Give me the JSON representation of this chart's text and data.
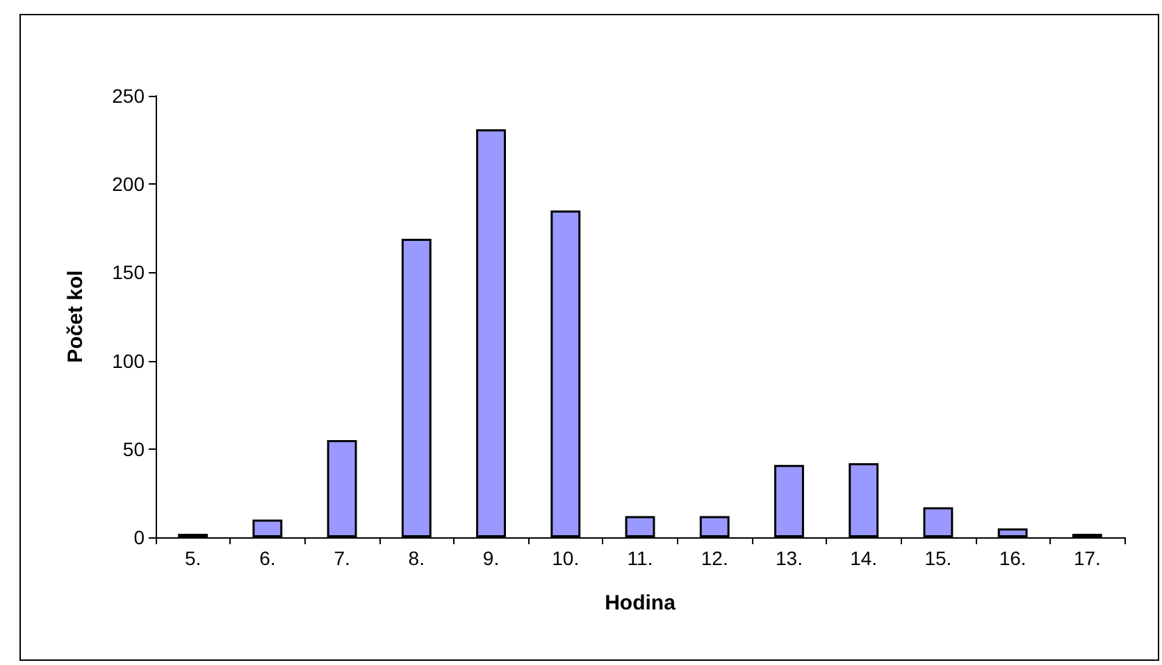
{
  "chart_data": {
    "type": "bar",
    "xlabel": "Hodina",
    "ylabel": "Počet kol",
    "categories": [
      "5.",
      "6.",
      "7.",
      "8.",
      "9.",
      "10.",
      "11.",
      "12.",
      "13.",
      "14.",
      "15.",
      "16.",
      "17."
    ],
    "values": [
      2,
      10,
      55,
      169,
      231,
      185,
      12,
      12,
      41,
      42,
      17,
      5,
      2
    ],
    "color": "#9999ff",
    "ylim": [
      0,
      250
    ],
    "yticks": [
      0,
      50,
      100,
      150,
      200,
      250
    ],
    "grid": false
  }
}
